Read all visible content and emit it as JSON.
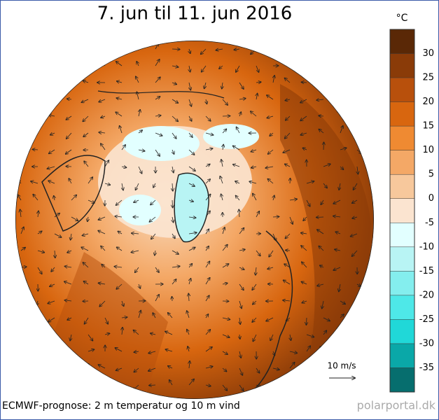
{
  "header": {
    "title": "7. jun til 11. jun 2016"
  },
  "colorbar": {
    "unit": "°C",
    "ticks": [
      30,
      25,
      20,
      15,
      10,
      5,
      0,
      -5,
      -10,
      -15,
      -20,
      -25,
      -30,
      -35
    ],
    "colors": [
      "#5a2806",
      "#8a3b08",
      "#b8500c",
      "#d8660f",
      "#ef8a32",
      "#f4a866",
      "#f7c89c",
      "#fbe4d0",
      "#e2ffff",
      "#b8f4f4",
      "#84eeee",
      "#4ee8e8",
      "#20d8d8",
      "#0aa8a8",
      "#066e6e"
    ]
  },
  "scale": {
    "label": "10 m/s"
  },
  "footer": {
    "caption": "ECMWF-prognose: 2 m temperatur og 10 m vind",
    "source": "polarportal.dk"
  }
}
